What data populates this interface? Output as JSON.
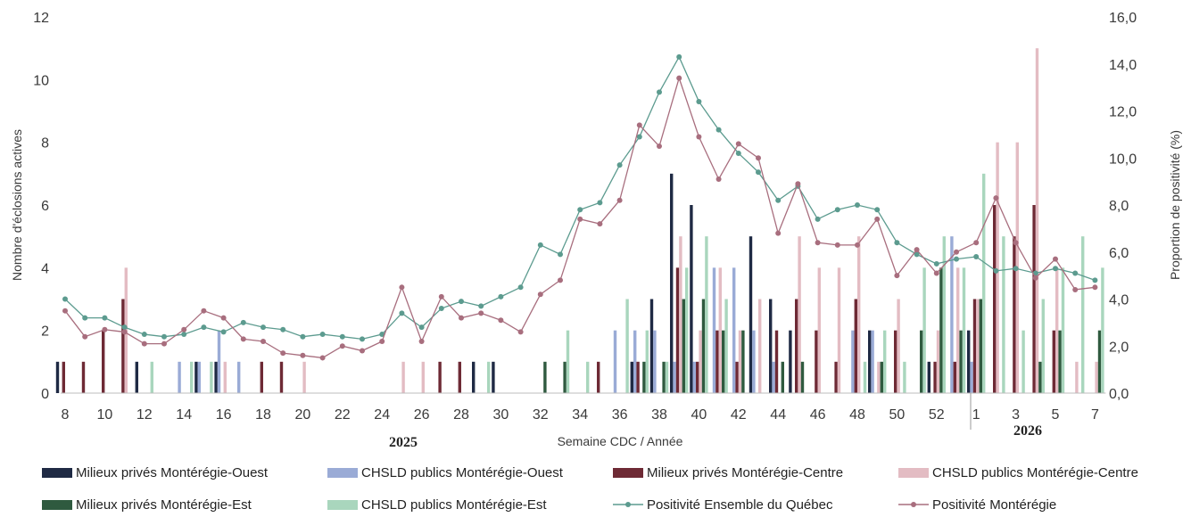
{
  "chart_data": {
    "type": "bar",
    "xlabel": "Semaine CDC / Année",
    "ylabel_left": "Nombre d'éclosions actives",
    "ylabel_right": "Proportion de positivité (%)",
    "ylim_left": [
      0,
      12
    ],
    "ylim_right": [
      0,
      16
    ],
    "left_ticks": [
      "0",
      "2",
      "4",
      "6",
      "8",
      "10",
      "12"
    ],
    "right_ticks": [
      "0,0",
      "2,0",
      "4,0",
      "6,0",
      "8,0",
      "10,0",
      "12,0",
      "14,0",
      "16,0"
    ],
    "years": [
      "2025",
      "2026"
    ],
    "weeks": [
      8,
      9,
      10,
      11,
      12,
      13,
      14,
      15,
      16,
      17,
      18,
      19,
      20,
      21,
      22,
      23,
      24,
      25,
      26,
      27,
      28,
      29,
      30,
      31,
      32,
      33,
      34,
      35,
      36,
      37,
      38,
      39,
      40,
      41,
      42,
      43,
      44,
      45,
      46,
      47,
      48,
      49,
      50,
      51,
      52,
      53,
      1,
      2,
      3,
      4,
      5,
      6,
      7
    ],
    "x_tick_labels": [
      "8",
      "10",
      "12",
      "14",
      "16",
      "18",
      "20",
      "22",
      "24",
      "26",
      "28",
      "30",
      "32",
      "34",
      "36",
      "38",
      "40",
      "42",
      "44",
      "46",
      "48",
      "50",
      "52",
      "1",
      "3",
      "5",
      "7"
    ],
    "bar_series": [
      {
        "name": "Milieux privés Montérégie-Ouest",
        "color": "#1f2a44",
        "values": [
          1,
          0,
          0,
          0,
          1,
          0,
          0,
          1,
          1,
          0,
          0,
          0,
          0,
          0,
          0,
          0,
          0,
          0,
          0,
          0,
          0,
          1,
          1,
          0,
          0,
          0,
          0,
          0,
          0,
          1,
          3,
          7,
          6,
          0,
          0,
          5,
          3,
          2,
          0,
          0,
          0,
          2,
          0,
          0,
          1,
          0,
          2,
          0,
          0,
          0,
          0,
          0,
          0
        ]
      },
      {
        "name": "CHSLD publics Montérégie-Ouest",
        "color": "#9aabd6",
        "values": [
          0,
          0,
          0,
          0,
          0,
          0,
          1,
          1,
          2,
          1,
          0,
          0,
          0,
          0,
          0,
          0,
          0,
          0,
          0,
          0,
          0,
          0,
          0,
          0,
          0,
          0,
          0,
          0,
          2,
          2,
          2,
          1,
          1,
          4,
          4,
          2,
          1,
          0,
          0,
          0,
          2,
          2,
          0,
          0,
          0,
          5,
          1,
          0,
          0,
          0,
          0,
          0,
          0
        ]
      },
      {
        "name": "Milieux privés  Montérégie-Centre",
        "color": "#6e2a35",
        "values": [
          1,
          1,
          2,
          3,
          0,
          0,
          0,
          0,
          0,
          0,
          1,
          1,
          0,
          0,
          0,
          0,
          0,
          0,
          0,
          1,
          1,
          0,
          0,
          0,
          0,
          0,
          0,
          1,
          0,
          1,
          0,
          4,
          1,
          2,
          1,
          0,
          2,
          3,
          2,
          1,
          3,
          0,
          2,
          0,
          1,
          1,
          3,
          6,
          5,
          6,
          2,
          0,
          0
        ]
      },
      {
        "name": "CHSLD publics Montérégie-Centre",
        "color": "#e3bcc3",
        "values": [
          0,
          0,
          0,
          4,
          0,
          0,
          0,
          0,
          1,
          0,
          0,
          0,
          1,
          0,
          0,
          0,
          0,
          1,
          1,
          0,
          0,
          0,
          0,
          0,
          0,
          0,
          0,
          0,
          0,
          0,
          0,
          5,
          2,
          4,
          2,
          3,
          0,
          5,
          4,
          4,
          5,
          1,
          3,
          0,
          2,
          4,
          3,
          8,
          8,
          11,
          4,
          1,
          1
        ]
      },
      {
        "name": "Milieux privés Montérégie-Est",
        "color": "#2f5a3f",
        "values": [
          0,
          0,
          0,
          0,
          0,
          0,
          0,
          0,
          0,
          0,
          0,
          0,
          0,
          0,
          0,
          0,
          0,
          0,
          0,
          0,
          0,
          0,
          0,
          0,
          1,
          1,
          0,
          0,
          0,
          1,
          1,
          3,
          3,
          2,
          2,
          0,
          1,
          1,
          0,
          0,
          0,
          1,
          0,
          2,
          4,
          2,
          3,
          0,
          0,
          1,
          2,
          0,
          2
        ]
      },
      {
        "name": "CHSLD publics Montérégie-Est",
        "color": "#a9d6bd",
        "values": [
          0,
          0,
          0,
          0,
          1,
          0,
          1,
          1,
          0,
          0,
          0,
          0,
          0,
          0,
          0,
          0,
          0,
          0,
          0,
          0,
          0,
          1,
          0,
          0,
          0,
          2,
          1,
          0,
          3,
          2,
          1,
          4,
          5,
          3,
          0,
          0,
          0,
          0,
          0,
          0,
          1,
          2,
          1,
          4,
          5,
          4,
          7,
          5,
          2,
          3,
          4,
          5,
          4
        ]
      }
    ],
    "line_series": [
      {
        "name": "Positivité Ensemble du Québec",
        "color": "#5c9b8f",
        "values": [
          4.0,
          3.2,
          3.2,
          2.8,
          2.5,
          2.4,
          2.5,
          2.8,
          2.6,
          3.0,
          2.8,
          2.7,
          2.4,
          2.5,
          2.4,
          2.3,
          2.5,
          3.4,
          2.8,
          3.6,
          3.9,
          3.7,
          4.1,
          4.5,
          6.3,
          5.9,
          7.8,
          8.1,
          9.7,
          10.9,
          12.8,
          14.3,
          12.4,
          11.2,
          10.2,
          9.4,
          8.2,
          8.8,
          7.4,
          7.8,
          8.0,
          7.8,
          6.4,
          5.9,
          5.5,
          5.7,
          5.8,
          5.2,
          5.3,
          5.1,
          5.3,
          5.1,
          4.8
        ]
      },
      {
        "name": "Positivité Montérégie",
        "color": "#a86e7e",
        "values": [
          3.5,
          2.4,
          2.7,
          2.6,
          2.1,
          2.1,
          2.7,
          3.5,
          3.2,
          2.3,
          2.2,
          1.7,
          1.6,
          1.5,
          2.0,
          1.8,
          2.2,
          4.5,
          2.2,
          4.1,
          3.2,
          3.4,
          3.1,
          2.6,
          4.2,
          4.8,
          7.4,
          7.2,
          8.2,
          11.4,
          10.5,
          13.4,
          10.9,
          9.1,
          10.6,
          10.0,
          6.8,
          8.9,
          6.4,
          6.3,
          6.3,
          7.4,
          5.0,
          6.1,
          5.1,
          6.0,
          6.4,
          8.3,
          6.4,
          4.9,
          5.7,
          4.4,
          4.5
        ]
      }
    ],
    "legend_position": "bottom"
  }
}
